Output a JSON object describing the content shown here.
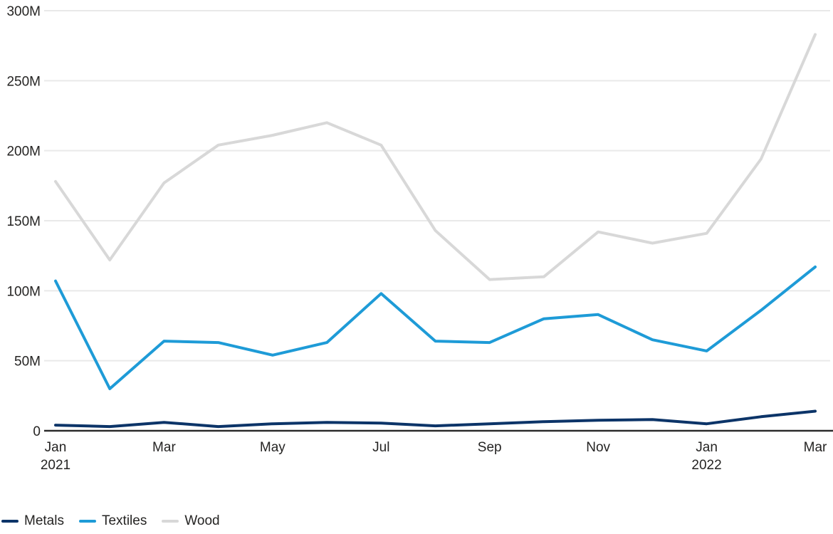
{
  "colors": {
    "grid": "#e9e9e9",
    "axis_line": "#2b2b2b",
    "text": "#252423",
    "background": "#ffffff",
    "metals": "#0c3468",
    "textiles": "#1e9bd7",
    "wood": "#d8d8d8"
  },
  "chart_data": {
    "type": "line",
    "title": "",
    "xlabel": "",
    "ylabel": "",
    "y_unit": "M",
    "ylim": [
      0,
      300
    ],
    "grid": "horizontal",
    "legend_position": "bottom-left",
    "x": [
      "Jan 2021",
      "Feb 2021",
      "Mar 2021",
      "Apr 2021",
      "May 2021",
      "Jun 2021",
      "Jul 2021",
      "Aug 2021",
      "Sep 2021",
      "Oct 2021",
      "Nov 2021",
      "Dec 2021",
      "Jan 2022",
      "Feb 2022",
      "Mar 2022"
    ],
    "x_tick_labels": [
      {
        "index": 0,
        "label": "Jan",
        "sublabel": "2021"
      },
      {
        "index": 2,
        "label": "Mar"
      },
      {
        "index": 4,
        "label": "May"
      },
      {
        "index": 6,
        "label": "Jul"
      },
      {
        "index": 8,
        "label": "Sep"
      },
      {
        "index": 10,
        "label": "Nov"
      },
      {
        "index": 12,
        "label": "Jan",
        "sublabel": "2022"
      },
      {
        "index": 14,
        "label": "Mar"
      }
    ],
    "y_ticks": [
      0,
      50,
      100,
      150,
      200,
      250,
      300
    ],
    "y_tick_labels": [
      "0",
      "50M",
      "100M",
      "150M",
      "200M",
      "250M",
      "300M"
    ],
    "series": [
      {
        "name": "Metals",
        "color": "#0c3468",
        "values": [
          4,
          3,
          6,
          3,
          5,
          6,
          5.5,
          3.5,
          5,
          6.5,
          7.5,
          8,
          5,
          10,
          14
        ]
      },
      {
        "name": "Textiles",
        "color": "#1e9bd7",
        "values": [
          107,
          30,
          64,
          63,
          54,
          63,
          98,
          64,
          63,
          80,
          83,
          65,
          57,
          86,
          117
        ]
      },
      {
        "name": "Wood",
        "color": "#d8d8d8",
        "values": [
          178,
          122,
          177,
          204,
          211,
          220,
          204,
          143,
          108,
          110,
          142,
          134,
          141,
          194,
          283
        ]
      }
    ]
  }
}
